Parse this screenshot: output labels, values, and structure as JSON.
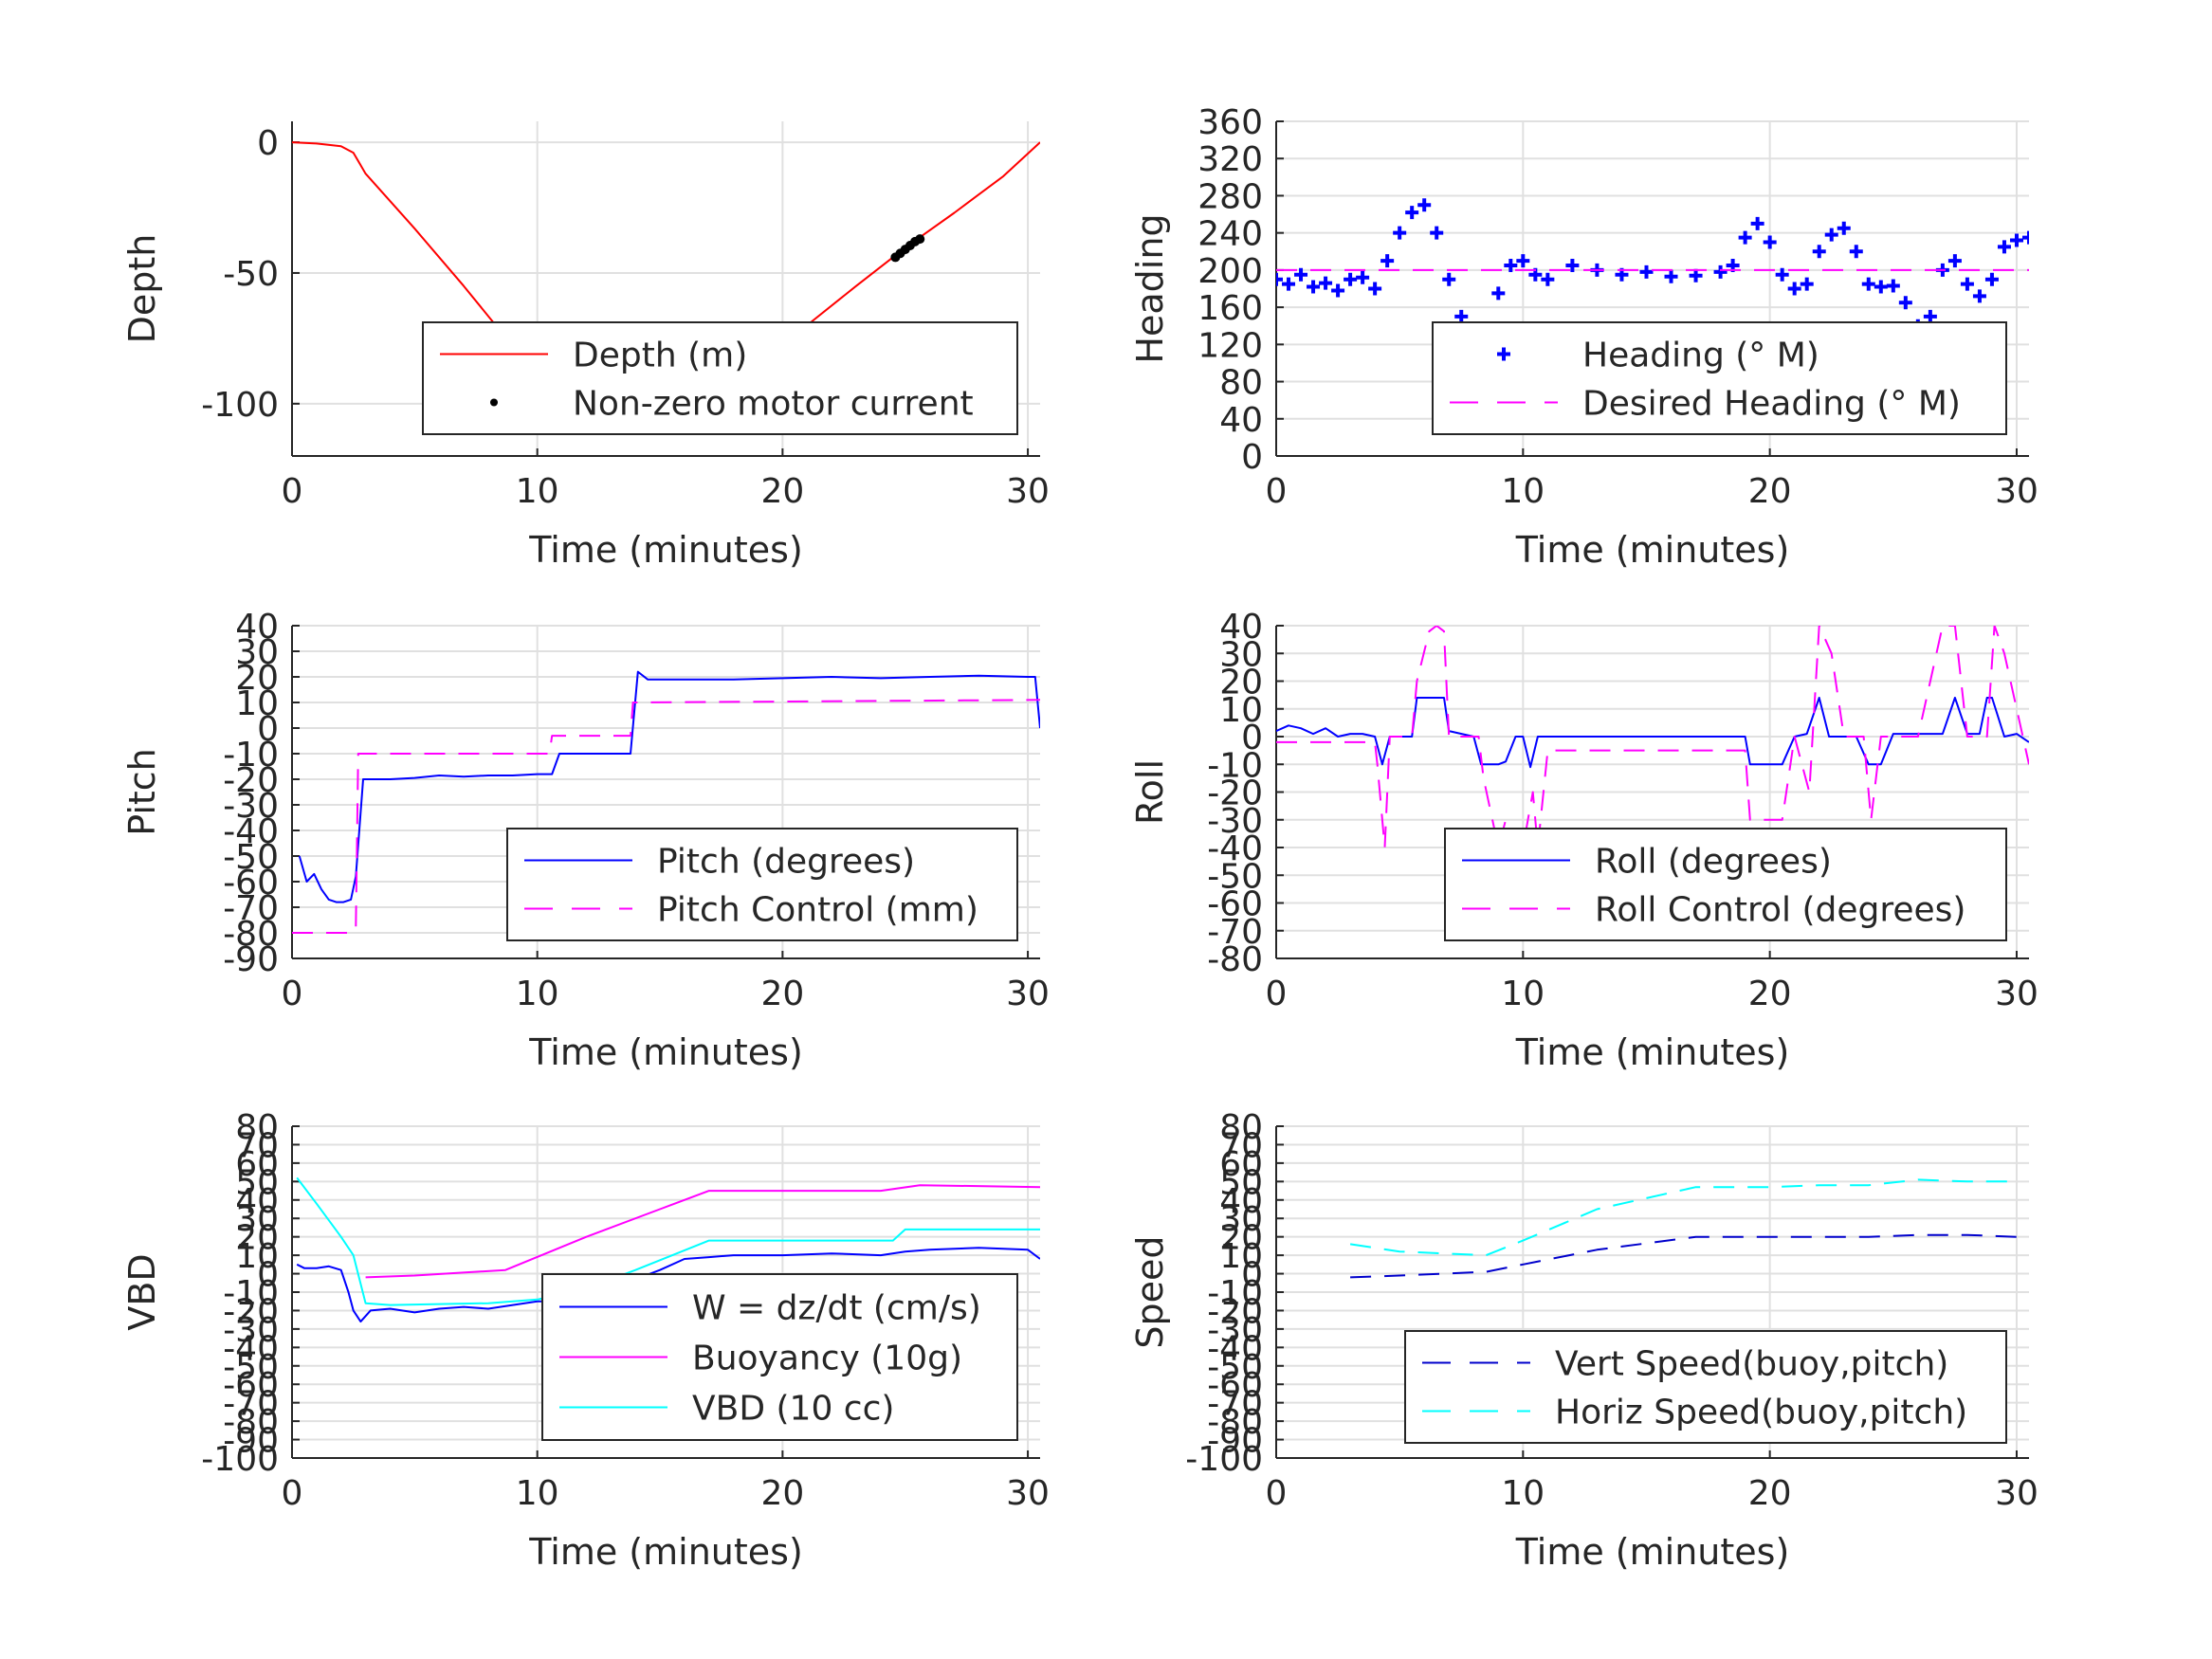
{
  "chart_data": [
    {
      "type": "line",
      "id": "depth",
      "xlabel": "Time (minutes)",
      "ylabel": "Depth",
      "xlim": [
        0,
        30.5
      ],
      "ylim": [
        -120,
        8
      ],
      "xticks": [
        0,
        10,
        20,
        30
      ],
      "yticks": [
        0,
        -50,
        -100
      ],
      "grid": true,
      "legend_position": "bottom-right",
      "series": [
        {
          "name": "Depth (m)",
          "style": "line",
          "color": "#ff0000",
          "x": [
            0,
            1,
            2,
            2.5,
            3,
            5,
            7,
            9,
            10,
            11,
            12,
            13,
            13.8,
            15,
            17,
            19,
            21,
            23,
            24.5,
            25.5,
            27,
            28,
            29,
            30.5
          ],
          "y": [
            0,
            -0.5,
            -1.5,
            -4,
            -12,
            -33,
            -55,
            -78,
            -90,
            -103,
            -106,
            -109,
            -110,
            -107,
            -100,
            -85,
            -70,
            -55,
            -44,
            -37,
            -27,
            -20,
            -13,
            0
          ]
        },
        {
          "name": "Non-zero motor current",
          "style": "marker",
          "color": "#000000",
          "x": [
            10.9,
            11.3,
            11.7,
            12.1,
            12.5,
            12.9,
            13.3,
            13.7,
            14.1,
            14.5,
            14.9,
            15.3,
            15.7,
            16.1,
            16.5,
            17.0,
            24.6,
            24.8,
            25.0,
            25.2,
            25.4,
            25.6
          ],
          "y": [
            -103,
            -104.2,
            -105.3,
            -106.5,
            -107.7,
            -108.7,
            -109.5,
            -110,
            -109.5,
            -108.5,
            -107.3,
            -106.1,
            -104.8,
            -103.4,
            -102,
            -100.5,
            -44,
            -42.5,
            -41,
            -39.5,
            -38,
            -37
          ]
        }
      ]
    },
    {
      "type": "line",
      "id": "heading",
      "xlabel": "Time (minutes)",
      "ylabel": "Heading",
      "xlim": [
        0,
        30.5
      ],
      "ylim": [
        0,
        360
      ],
      "xticks": [
        0,
        10,
        20,
        30
      ],
      "yticks": [
        0,
        40,
        80,
        120,
        160,
        200,
        240,
        280,
        320,
        360
      ],
      "grid": true,
      "legend_position": "bottom-right",
      "series": [
        {
          "name": "Heading (° M)",
          "style": "marker",
          "color": "#0000ff",
          "x": [
            0,
            0.5,
            1,
            1.5,
            2,
            2.5,
            3,
            3.5,
            4,
            4.5,
            5,
            5.5,
            6,
            6.5,
            7,
            7.5,
            8,
            8.5,
            9,
            9.5,
            10,
            10.5,
            11,
            12,
            13,
            14,
            15,
            16,
            17,
            18,
            18.5,
            19,
            19.5,
            20,
            20.5,
            21,
            21.5,
            22,
            22.5,
            23,
            23.5,
            24,
            24.5,
            25,
            25.5,
            26,
            26.5,
            27,
            27.5,
            28,
            28.5,
            29,
            29.5,
            30,
            30.5
          ],
          "y": [
            190,
            185,
            195,
            182,
            186,
            178,
            190,
            192,
            180,
            210,
            240,
            262,
            270,
            240,
            190,
            150,
            118,
            130,
            175,
            205,
            210,
            195,
            190,
            205,
            200,
            195,
            198,
            193,
            194,
            198,
            205,
            235,
            250,
            230,
            195,
            180,
            185,
            220,
            238,
            245,
            220,
            185,
            182,
            183,
            165,
            140,
            150,
            200,
            210,
            185,
            172,
            190,
            225,
            232,
            235
          ]
        },
        {
          "name": "Desired Heading (° M)",
          "style": "dashed",
          "color": "#ff00ff",
          "x": [
            0,
            30.5
          ],
          "y": [
            200,
            200
          ]
        }
      ]
    },
    {
      "type": "line",
      "id": "pitch",
      "xlabel": "Time (minutes)",
      "ylabel": "Pitch",
      "xlim": [
        0,
        30.5
      ],
      "ylim": [
        -90,
        40
      ],
      "xticks": [
        0,
        10,
        20,
        30
      ],
      "yticks": [
        40,
        30,
        20,
        10,
        0,
        -10,
        -20,
        -30,
        -40,
        -50,
        -60,
        -70,
        -80,
        -90
      ],
      "grid": true,
      "legend_position": "bottom-right",
      "series": [
        {
          "name": "Pitch (degrees)",
          "style": "line",
          "color": "#0000ff",
          "x": [
            0.3,
            0.6,
            0.9,
            1.2,
            1.5,
            1.8,
            2.1,
            2.4,
            2.6,
            2.9,
            4,
            5,
            6,
            7,
            8,
            9,
            10,
            10.6,
            10.9,
            11.5,
            12,
            13,
            13.8,
            14.1,
            14.5,
            16,
            18,
            20,
            22,
            24,
            26,
            28,
            30,
            30.3,
            30.5
          ],
          "y": [
            -50,
            -60,
            -57,
            -63,
            -67,
            -68,
            -68,
            -67,
            -58,
            -20,
            -20,
            -19.5,
            -18.5,
            -19,
            -18.5,
            -18.5,
            -18,
            -18,
            -10,
            -10,
            -10,
            -10,
            -10,
            22,
            19,
            19,
            19,
            19.5,
            20,
            19.5,
            20,
            20.5,
            20,
            20,
            0
          ]
        },
        {
          "name": "Pitch Control (mm)",
          "style": "dashed",
          "color": "#ff00ff",
          "x": [
            0,
            2.5,
            2.6,
            2.7,
            10.5,
            10.6,
            13.8,
            13.9,
            30.5
          ],
          "y": [
            -80,
            -80,
            -78,
            -10,
            -10,
            -3,
            -3,
            10,
            11
          ]
        }
      ]
    },
    {
      "type": "line",
      "id": "roll",
      "xlabel": "Time (minutes)",
      "ylabel": "Roll",
      "xlim": [
        0,
        30.5
      ],
      "ylim": [
        -80,
        40
      ],
      "xticks": [
        0,
        10,
        20,
        30
      ],
      "yticks": [
        40,
        30,
        20,
        10,
        0,
        -10,
        -20,
        -30,
        -40,
        -50,
        -60,
        -70,
        -80
      ],
      "grid": true,
      "legend_position": "bottom-right",
      "series": [
        {
          "name": "Roll (degrees)",
          "style": "line",
          "color": "#0000ff",
          "x": [
            0,
            0.5,
            1,
            1.5,
            2,
            2.5,
            3,
            3.5,
            4,
            4.3,
            4.6,
            5.5,
            5.7,
            6,
            6.8,
            7,
            8,
            8.3,
            9,
            9.3,
            9.7,
            10,
            10.3,
            10.6,
            11,
            13,
            16,
            19,
            19.2,
            20.5,
            21,
            21.5,
            22,
            22.4,
            23,
            23.5,
            24,
            24.5,
            25,
            26,
            27,
            27.5,
            28,
            28.5,
            28.8,
            29,
            29.5,
            30,
            30.5
          ],
          "y": [
            2,
            4,
            3,
            1,
            3,
            0,
            1,
            1,
            0,
            -10,
            0,
            0,
            14,
            14,
            14,
            2,
            0,
            -10,
            -10,
            -9,
            0,
            0,
            -11,
            0,
            0,
            0,
            0,
            0,
            -10,
            -10,
            0,
            1,
            14,
            0,
            0,
            0,
            -10,
            -10,
            1,
            1,
            1,
            14,
            1,
            1,
            14,
            14,
            0,
            1,
            -2
          ]
        },
        {
          "name": "Roll Control (degrees)",
          "style": "dashed",
          "color": "#ff00ff",
          "x": [
            0,
            4,
            4.1,
            4.4,
            4.6,
            5.5,
            5.7,
            6.2,
            6.5,
            6.8,
            7,
            8.2,
            8.4,
            9,
            9.3,
            10,
            10.4,
            10.6,
            11,
            19,
            19.2,
            20.5,
            21,
            21.6,
            22,
            22.5,
            23,
            23.8,
            24.1,
            24.5,
            26,
            26.5,
            27,
            27.5,
            28,
            28.8,
            29.1,
            29.5,
            30.5
          ],
          "y": [
            -2,
            -2,
            -10,
            -40,
            0,
            0,
            20,
            38,
            40,
            38,
            0,
            0,
            -15,
            -40,
            -30,
            -40,
            -20,
            -40,
            -5,
            -5,
            -30,
            -30,
            0,
            -20,
            40,
            30,
            0,
            0,
            -30,
            0,
            0,
            20,
            40,
            40,
            0,
            0,
            40,
            30,
            -10
          ]
        }
      ]
    },
    {
      "type": "line",
      "id": "vbd",
      "xlabel": "Time (minutes)",
      "ylabel": "VBD",
      "xlim": [
        0,
        30.5
      ],
      "ylim": [
        -100,
        80
      ],
      "xticks": [
        0,
        10,
        20,
        30
      ],
      "yticks": [
        80,
        70,
        60,
        50,
        40,
        30,
        20,
        10,
        0,
        -10,
        -20,
        -30,
        -40,
        -50,
        -60,
        -70,
        -80,
        -90,
        -100
      ],
      "ytick_labels": [
        "80",
        "70",
        "60",
        "50",
        "40",
        "30",
        "20",
        "10",
        "0",
        "-10",
        "-20",
        "-30",
        "-40",
        "-50",
        "-60",
        "-70",
        "-80",
        "-90",
        "-100"
      ],
      "grid": true,
      "legend_position": "bottom-right",
      "series": [
        {
          "name": "W = dz/dt (cm/s)",
          "style": "line",
          "color": "#0000ff",
          "x": [
            0.2,
            0.5,
            1,
            1.5,
            2,
            2.3,
            2.5,
            2.8,
            3.2,
            4,
            5,
            6,
            7,
            8,
            9,
            10,
            10.8,
            11,
            12,
            13,
            14,
            15,
            16,
            17,
            18,
            20,
            22,
            24,
            25,
            26,
            28,
            30,
            30.5
          ],
          "y": [
            5,
            3,
            3,
            4,
            2,
            -10,
            -20,
            -26,
            -20,
            -19,
            -21,
            -19,
            -18,
            -19,
            -17,
            -15,
            -15,
            -8,
            -6,
            -5,
            -3,
            2,
            8,
            9,
            10,
            10,
            11,
            10,
            12,
            13,
            14,
            13,
            8
          ]
        },
        {
          "name": "Buoyancy (10g)",
          "style": "line",
          "color": "#ff00ff",
          "x": [
            3,
            5,
            8.7,
            12,
            15,
            17,
            20,
            22,
            24,
            25.6,
            30.5
          ],
          "y": [
            -2,
            -1,
            2,
            20,
            35,
            45,
            45,
            45,
            45,
            48,
            47
          ]
        },
        {
          "name": "VBD (10 cc)",
          "style": "line",
          "color": "#00ffff",
          "x": [
            0.2,
            1,
            2,
            2.5,
            3,
            4,
            8,
            10,
            12,
            14,
            17,
            20,
            24.5,
            25,
            30.5
          ],
          "y": [
            52,
            38,
            20,
            10,
            -16,
            -17,
            -16,
            -14,
            -8,
            2,
            18,
            18,
            18,
            24,
            24
          ]
        }
      ]
    },
    {
      "type": "line",
      "id": "speed",
      "xlabel": "Time (minutes)",
      "ylabel": "Speed",
      "xlim": [
        0,
        30.5
      ],
      "ylim": [
        -100,
        80
      ],
      "xticks": [
        0,
        10,
        20,
        30
      ],
      "yticks": [
        80,
        70,
        60,
        50,
        40,
        30,
        20,
        10,
        0,
        -10,
        -20,
        -30,
        -40,
        -50,
        -60,
        -70,
        -80,
        -90,
        -100
      ],
      "ytick_labels": [
        "80",
        "70",
        "60",
        "50",
        "40",
        "30",
        "20",
        "10",
        "0",
        "-10",
        "-20",
        "-30",
        "-40",
        "-50",
        "-60",
        "-70",
        "-80",
        "-90",
        "-100"
      ],
      "grid": true,
      "legend_position": "bottom-right",
      "series": [
        {
          "name": "Vert Speed(buoy,pitch)",
          "style": "dashed",
          "color": "#0000cc",
          "x": [
            3,
            5,
            8.5,
            10,
            13,
            17,
            20,
            22,
            24,
            26,
            28,
            30
          ],
          "y": [
            -2,
            -1,
            1,
            5,
            13,
            20,
            20,
            20,
            20,
            21,
            21,
            20
          ]
        },
        {
          "name": "Horiz Speed(buoy,pitch)",
          "style": "dashed",
          "color": "#00ffff",
          "x": [
            3,
            5,
            8.5,
            10,
            13,
            17,
            20,
            22,
            24,
            26,
            28,
            30
          ],
          "y": [
            16,
            12,
            10,
            18,
            35,
            47,
            47,
            48,
            48,
            51,
            50,
            50
          ]
        }
      ]
    }
  ]
}
